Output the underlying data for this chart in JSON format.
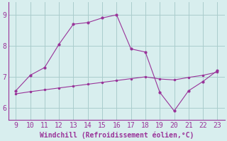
{
  "line1_x": [
    9,
    10,
    11,
    12,
    13,
    14,
    15,
    16,
    17,
    18,
    19,
    20,
    21,
    22,
    23
  ],
  "line1_y": [
    6.55,
    7.05,
    7.3,
    8.05,
    8.7,
    8.75,
    8.9,
    9.0,
    7.9,
    7.8,
    6.5,
    5.9,
    6.55,
    6.85,
    7.2
  ],
  "line2_x": [
    9,
    10,
    11,
    12,
    13,
    14,
    15,
    16,
    17,
    18,
    19,
    20,
    21,
    22,
    23
  ],
  "line2_y": [
    6.45,
    6.52,
    6.58,
    6.64,
    6.7,
    6.76,
    6.82,
    6.88,
    6.94,
    7.0,
    6.93,
    6.9,
    6.98,
    7.05,
    7.15
  ],
  "line_color": "#993399",
  "bg_color": "#d8eeee",
  "grid_color": "#aacccc",
  "spine_color": "#993399",
  "xlabel": "Windchill (Refroidissement éolien,°C)",
  "xlim": [
    8.5,
    23.5
  ],
  "ylim": [
    5.6,
    9.4
  ],
  "yticks": [
    6,
    7,
    8,
    9
  ],
  "xticks": [
    9,
    10,
    11,
    12,
    13,
    14,
    15,
    16,
    17,
    18,
    19,
    20,
    21,
    22,
    23
  ],
  "tick_fontsize": 7,
  "xlabel_fontsize": 7
}
